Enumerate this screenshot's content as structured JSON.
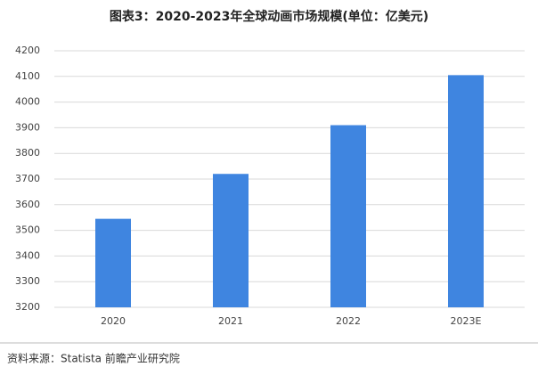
{
  "chart_data": {
    "type": "bar",
    "title": "图表3：2020-2023年全球动画市场规模(单位：亿美元)",
    "categories": [
      "2020",
      "2021",
      "2022",
      "2023E"
    ],
    "values": [
      3545,
      3720,
      3910,
      4105
    ],
    "color": "#3f85e0",
    "ylim": [
      3200,
      4200
    ],
    "yticks": [
      3200,
      3300,
      3400,
      3500,
      3600,
      3700,
      3800,
      3900,
      4000,
      4100,
      4200
    ],
    "grid": true,
    "source": "资料来源：Statista 前瞻产业研究院"
  }
}
